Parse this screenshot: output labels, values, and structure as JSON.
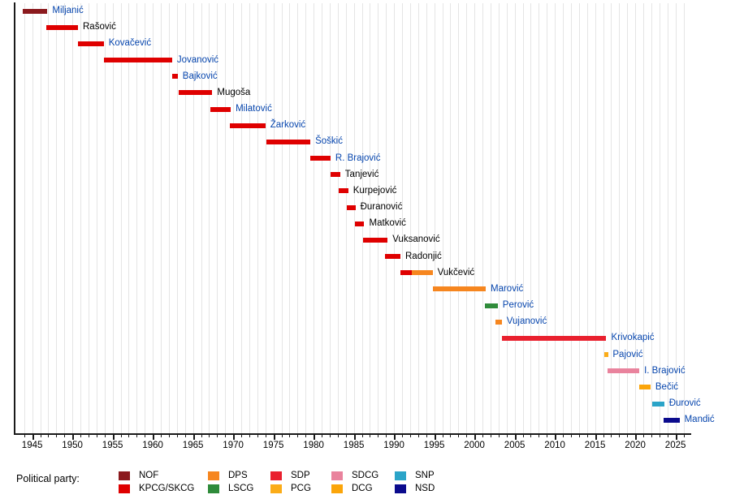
{
  "legend": {
    "title": "Political party:",
    "columns": [
      [
        "NOF",
        "KPCG/SKCG"
      ],
      [
        "DPS",
        "LSCG"
      ],
      [
        "SDP",
        "PCG"
      ],
      [
        "SDCG",
        "DCG"
      ],
      [
        "SNP",
        "NSD"
      ]
    ]
  },
  "parties": {
    "NOF": "#8b1a1e",
    "KPCG/SKCG": "#df0000",
    "DPS": "#f6861f",
    "LSCG": "#2f8b3a",
    "SDP": "#e9202e",
    "PCG": "#fbac18",
    "SDCG": "#e9839d",
    "DCG": "#fba50a",
    "SNP": "#2ba4c8",
    "NSD": "#0b0b8d"
  },
  "label_colors": {
    "link": "#0645ad",
    "plain": "#000000"
  },
  "chart_data": {
    "type": "timeline-gantt",
    "title": "",
    "x_axis": {
      "range": [
        1943,
        2027
      ],
      "major_ticks": [
        1945,
        1950,
        1955,
        1960,
        1965,
        1970,
        1975,
        1980,
        1985,
        1990,
        1995,
        2000,
        2005,
        2010,
        2015,
        2020,
        2025
      ],
      "minor_tick_step": 1,
      "gridlines": "yearly",
      "gridline_start": 1944,
      "gridline_end": 2026
    },
    "rows": [
      {
        "name": "Miljanić",
        "link": true,
        "segments": [
          {
            "party": "NOF",
            "start": 1943.8,
            "end": 1946.9
          }
        ]
      },
      {
        "name": "Rašović",
        "link": false,
        "segments": [
          {
            "party": "KPCG/SKCG",
            "start": 1946.8,
            "end": 1950.7
          }
        ]
      },
      {
        "name": "Kovačević",
        "link": true,
        "segments": [
          {
            "party": "KPCG/SKCG",
            "start": 1950.7,
            "end": 1953.9
          }
        ]
      },
      {
        "name": "Jovanović",
        "link": true,
        "segments": [
          {
            "party": "KPCG/SKCG",
            "start": 1953.9,
            "end": 1962.4
          }
        ]
      },
      {
        "name": "Bajković",
        "link": true,
        "segments": [
          {
            "party": "KPCG/SKCG",
            "start": 1962.4,
            "end": 1963.1
          }
        ]
      },
      {
        "name": "Mugoša",
        "link": false,
        "segments": [
          {
            "party": "KPCG/SKCG",
            "start": 1963.2,
            "end": 1967.4
          }
        ]
      },
      {
        "name": "Milatović",
        "link": true,
        "segments": [
          {
            "party": "KPCG/SKCG",
            "start": 1967.2,
            "end": 1969.7
          }
        ]
      },
      {
        "name": "Žarković",
        "link": true,
        "segments": [
          {
            "party": "KPCG/SKCG",
            "start": 1969.6,
            "end": 1974.0
          }
        ]
      },
      {
        "name": "Šoškić",
        "link": true,
        "segments": [
          {
            "party": "KPCG/SKCG",
            "start": 1974.1,
            "end": 1979.6
          }
        ]
      },
      {
        "name": "R. Brajović",
        "link": true,
        "segments": [
          {
            "party": "KPCG/SKCG",
            "start": 1979.6,
            "end": 1982.1
          }
        ]
      },
      {
        "name": "Tanjević",
        "link": false,
        "segments": [
          {
            "party": "KPCG/SKCG",
            "start": 1982.1,
            "end": 1983.3
          }
        ]
      },
      {
        "name": "Kurpejović",
        "link": false,
        "segments": [
          {
            "party": "KPCG/SKCG",
            "start": 1983.1,
            "end": 1984.3
          }
        ]
      },
      {
        "name": "Đuranović",
        "link": false,
        "segments": [
          {
            "party": "KPCG/SKCG",
            "start": 1984.1,
            "end": 1985.2
          }
        ]
      },
      {
        "name": "Matković",
        "link": false,
        "segments": [
          {
            "party": "KPCG/SKCG",
            "start": 1985.1,
            "end": 1986.3
          }
        ]
      },
      {
        "name": "Vuksanović",
        "link": false,
        "segments": [
          {
            "party": "KPCG/SKCG",
            "start": 1986.1,
            "end": 1989.2
          }
        ]
      },
      {
        "name": "Radonjić",
        "link": false,
        "segments": [
          {
            "party": "KPCG/SKCG",
            "start": 1988.9,
            "end": 1990.8
          }
        ]
      },
      {
        "name": "Vukčević",
        "link": false,
        "segments": [
          {
            "party": "KPCG/SKCG",
            "start": 1990.8,
            "end": 1992.2
          },
          {
            "party": "DPS",
            "start": 1992.2,
            "end": 1994.8
          }
        ]
      },
      {
        "name": "Marović",
        "link": true,
        "segments": [
          {
            "party": "DPS",
            "start": 1994.8,
            "end": 2001.4
          }
        ]
      },
      {
        "name": "Perović",
        "link": true,
        "segments": [
          {
            "party": "LSCG",
            "start": 2001.3,
            "end": 2002.9
          }
        ]
      },
      {
        "name": "Vujanović",
        "link": true,
        "segments": [
          {
            "party": "DPS",
            "start": 2002.6,
            "end": 2003.4
          }
        ]
      },
      {
        "name": "Krivokapić",
        "link": true,
        "segments": [
          {
            "party": "SDP",
            "start": 2003.4,
            "end": 2016.4
          }
        ]
      },
      {
        "name": "Pajović",
        "link": true,
        "segments": [
          {
            "party": "PCG",
            "start": 2016.1,
            "end": 2016.6
          }
        ]
      },
      {
        "name": "I. Brajović",
        "link": true,
        "segments": [
          {
            "party": "SDCG",
            "start": 2016.6,
            "end": 2020.5
          }
        ]
      },
      {
        "name": "Bečić",
        "link": true,
        "segments": [
          {
            "party": "DCG",
            "start": 2020.5,
            "end": 2021.9
          }
        ]
      },
      {
        "name": "Đurović",
        "link": true,
        "segments": [
          {
            "party": "SNP",
            "start": 2022.1,
            "end": 2023.6
          }
        ]
      },
      {
        "name": "Mandić",
        "link": true,
        "segments": [
          {
            "party": "NSD",
            "start": 2023.5,
            "end": 2025.5
          }
        ]
      }
    ]
  }
}
